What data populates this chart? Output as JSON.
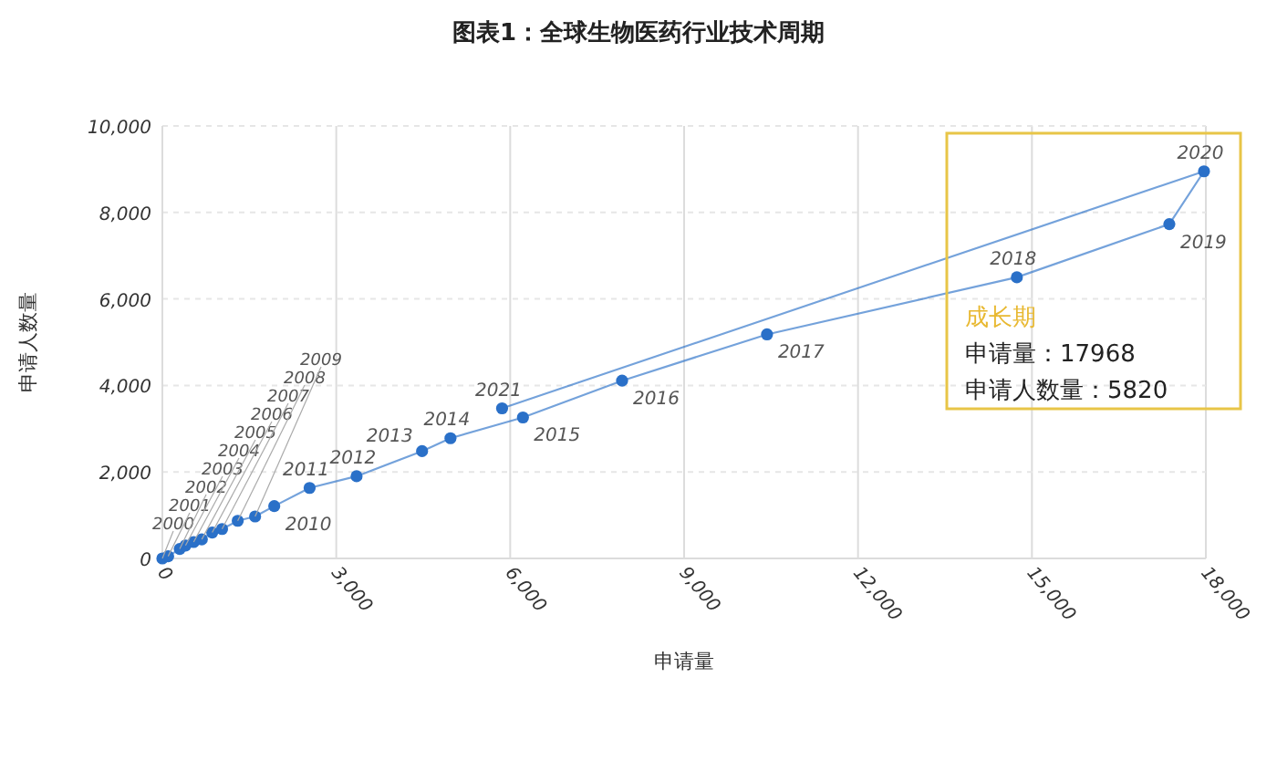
{
  "chart_data": {
    "type": "line",
    "title": "图表1：全球生物医药行业技术周期",
    "xlabel": "申请量",
    "ylabel": "申请人数量",
    "x": [
      0,
      100,
      300,
      400,
      540,
      680,
      860,
      1030,
      1300,
      1600,
      1930,
      2540,
      3350,
      4480,
      4970,
      6220,
      7930,
      10430,
      14740,
      17370,
      17968,
      5860
    ],
    "series": [
      {
        "color": "#2a70c8",
        "values": [
          0,
          50,
          220,
          300,
          380,
          440,
          600,
          680,
          870,
          970,
          1210,
          1630,
          1900,
          2480,
          2780,
          3260,
          4110,
          5180,
          6500,
          7730,
          8950,
          3470
        ]
      }
    ],
    "xlim": [
      0,
      18000
    ],
    "ylim": [
      0,
      10000
    ],
    "xticks": [
      {
        "value": 0,
        "label": "0"
      },
      {
        "value": 3000,
        "label": "3,000"
      },
      {
        "value": 6000,
        "label": "6,000"
      },
      {
        "value": 9000,
        "label": "9,000"
      },
      {
        "value": 12000,
        "label": "12,000"
      },
      {
        "value": 15000,
        "label": "15,000"
      },
      {
        "value": 18000,
        "label": "18,000"
      }
    ],
    "yticks": [
      {
        "value": 0,
        "label": "0"
      },
      {
        "value": 2000,
        "label": "2,000"
      },
      {
        "value": 4000,
        "label": "4,000"
      },
      {
        "value": 6000,
        "label": "6,000"
      },
      {
        "value": 8000,
        "label": "8,000"
      },
      {
        "value": 10000,
        "label": "10,000"
      }
    ],
    "grid": true,
    "marker": "circle",
    "line_style": "solid",
    "annotations": [
      {
        "text": "2000",
        "x": 0,
        "y": 0
      },
      {
        "text": "2001",
        "x": 100,
        "y": 50
      },
      {
        "text": "2002",
        "x": 300,
        "y": 220
      },
      {
        "text": "2003",
        "x": 400,
        "y": 300
      },
      {
        "text": "2004",
        "x": 540,
        "y": 380
      },
      {
        "text": "2005",
        "x": 680,
        "y": 440
      },
      {
        "text": "2006",
        "x": 860,
        "y": 600
      },
      {
        "text": "2007",
        "x": 1030,
        "y": 680
      },
      {
        "text": "2008",
        "x": 1300,
        "y": 870
      },
      {
        "text": "2009",
        "x": 1600,
        "y": 970
      },
      {
        "text": "2010",
        "x": 1930,
        "y": 1210
      },
      {
        "text": "2011",
        "x": 2540,
        "y": 1630
      },
      {
        "text": "2012",
        "x": 3350,
        "y": 1900
      },
      {
        "text": "2013",
        "x": 4480,
        "y": 2480
      },
      {
        "text": "2014",
        "x": 4970,
        "y": 2780
      },
      {
        "text": "2015",
        "x": 6220,
        "y": 3260
      },
      {
        "text": "2016",
        "x": 7930,
        "y": 4110
      },
      {
        "text": "2017",
        "x": 10430,
        "y": 5180
      },
      {
        "text": "2018",
        "x": 14740,
        "y": 6500
      },
      {
        "text": "2019",
        "x": 17370,
        "y": 7730
      },
      {
        "text": "2020",
        "x": 17968,
        "y": 8950
      },
      {
        "text": "2021",
        "x": 5860,
        "y": 3470
      },
      "成长期",
      "申请量：17968",
      "申请人数量：5820"
    ]
  }
}
